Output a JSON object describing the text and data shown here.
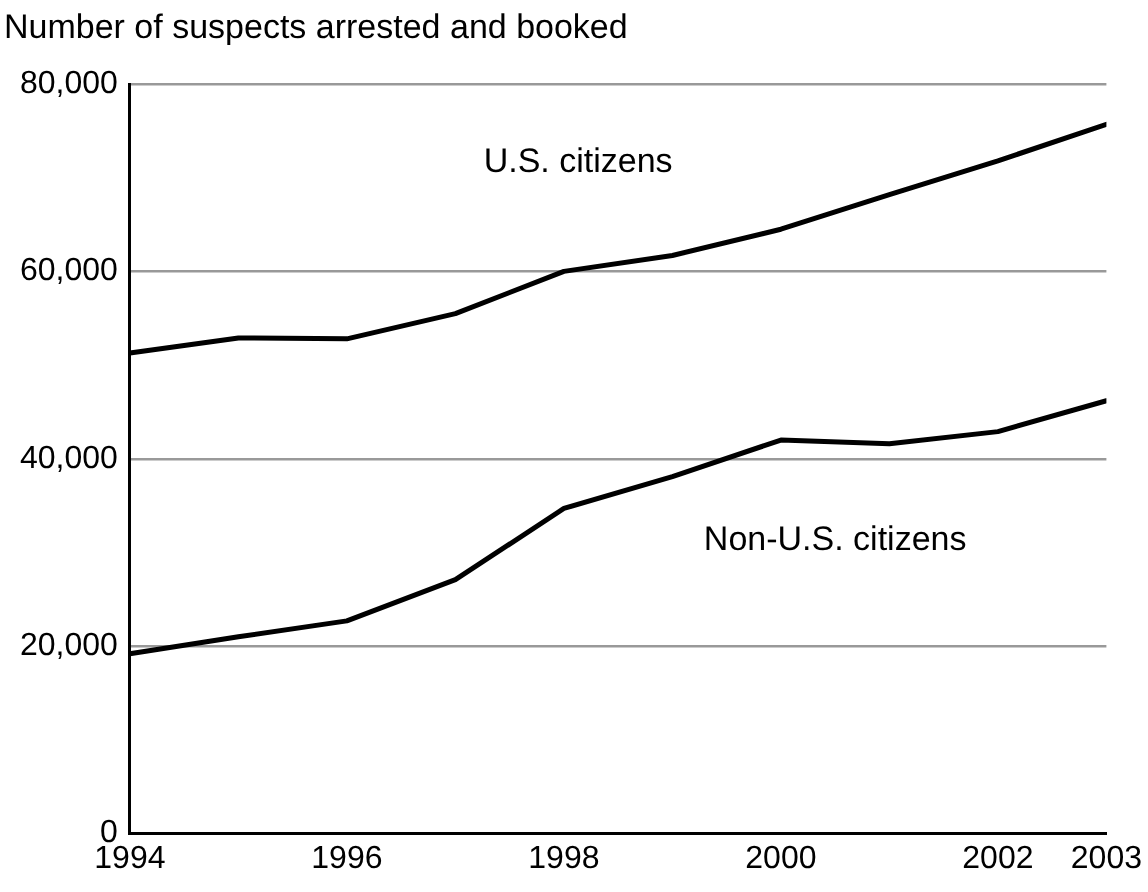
{
  "chart_data": {
    "type": "line",
    "ylabel": "Number of suspects arrested and booked",
    "x": [
      1994,
      1995,
      1996,
      1997,
      1998,
      1999,
      2000,
      2001,
      2002,
      2003
    ],
    "series": [
      {
        "name": "U.S. citizens",
        "color": "#000000",
        "values": [
          51300,
          52900,
          52800,
          55500,
          60000,
          61700,
          64500,
          68200,
          71800,
          75700
        ]
      },
      {
        "name": "Non-U.S. citizens",
        "color": "#000000",
        "values": [
          19200,
          21000,
          22700,
          27100,
          34700,
          38100,
          42000,
          41600,
          42900,
          46200
        ]
      }
    ],
    "xlim": [
      1994,
      2003
    ],
    "xticks": [
      1994,
      1996,
      1998,
      2000,
      2002,
      2003
    ],
    "ylim": [
      0,
      80000
    ],
    "yticks": [
      {
        "value": 0,
        "label": "0"
      },
      {
        "value": 20000,
        "label": "20,000"
      },
      {
        "value": 40000,
        "label": "40,000"
      },
      {
        "value": 60000,
        "label": "60,000"
      },
      {
        "value": 80000,
        "label": "80,000"
      }
    ],
    "grid": "y",
    "legend": false,
    "marker": "none",
    "line_style": "solid"
  }
}
